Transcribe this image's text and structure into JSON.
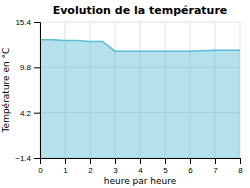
{
  "chart_data": {
    "type": "area",
    "title": "Evolution de la température",
    "xlabel": "heure par heure",
    "ylabel": "Température en °C",
    "x": [
      0,
      0.5,
      1,
      1.5,
      2,
      2.5,
      3,
      4,
      5,
      6,
      7,
      8
    ],
    "values": [
      13.2,
      13.2,
      13.1,
      13.1,
      13.0,
      13.0,
      11.8,
      11.8,
      11.8,
      11.8,
      11.9,
      11.9
    ],
    "color": "#5bbcd6",
    "xlim": [
      0,
      8
    ],
    "ylim": [
      -1.4,
      15.4
    ],
    "xticks": [
      0,
      1,
      2,
      3,
      4,
      5,
      6,
      7,
      8
    ],
    "yticks": [
      {
        "value": -1.4,
        "label": "−1.4"
      },
      4.2,
      9.8,
      15.4
    ],
    "grid": true
  }
}
